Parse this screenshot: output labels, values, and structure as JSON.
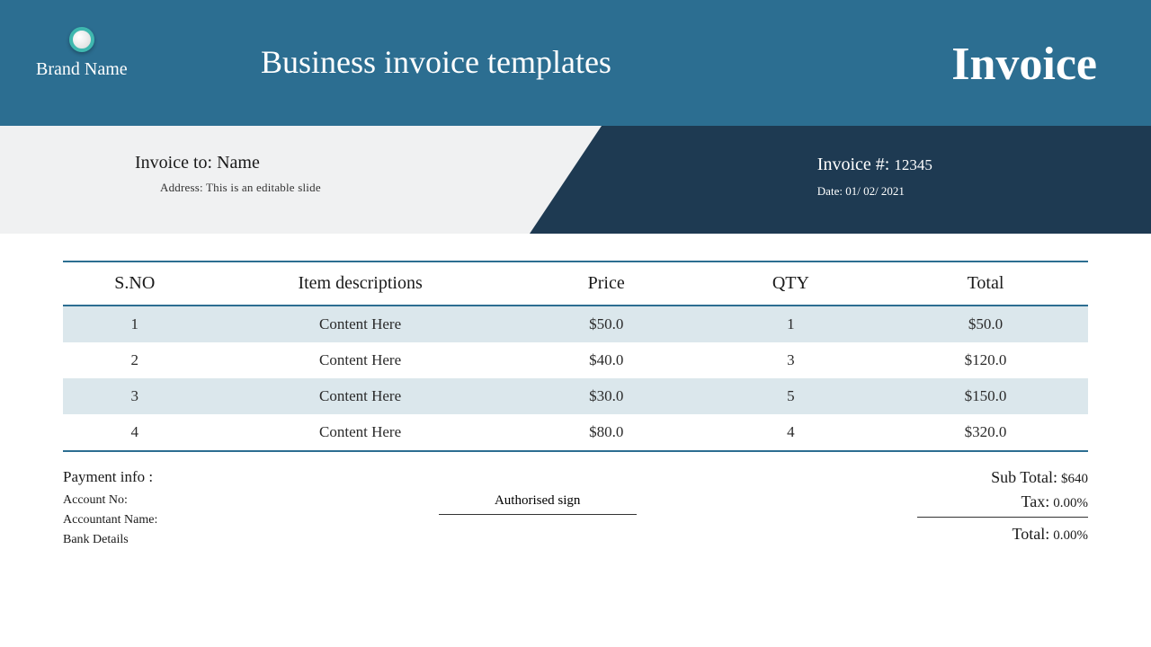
{
  "colors": {
    "header_bg": "#2c6e91",
    "subheader_left_bg": "#f0f1f2",
    "subheader_right_bg": "#1e3a52",
    "row_alt_bg": "#dbe7ec",
    "border": "#2c6e91",
    "text_dark": "#1a1a1a",
    "text_white": "#ffffff",
    "icon_ring": "#3fb8af"
  },
  "brand": {
    "name": "Brand Name"
  },
  "title": "Business invoice templates",
  "badge": "Invoice",
  "bill_to": {
    "label": "Invoice to: Name",
    "address": "Address: This is an editable slide"
  },
  "meta": {
    "number_label": "Invoice #:",
    "number": "12345",
    "date_label": "Date:",
    "date": "01/ 02/ 2021"
  },
  "table": {
    "columns": [
      "S.NO",
      "Item descriptions",
      "Price",
      "QTY",
      "Total"
    ],
    "col_widths_pct": [
      14,
      30,
      18,
      18,
      20
    ],
    "rows": [
      {
        "sno": "1",
        "desc": "Content Here",
        "price": "$50.0",
        "qty": "1",
        "total": "$50.0",
        "alt": true
      },
      {
        "sno": "2",
        "desc": "Content Here",
        "price": "$40.0",
        "qty": "3",
        "total": "$120.0",
        "alt": false
      },
      {
        "sno": "3",
        "desc": "Content Here",
        "price": "$30.0",
        "qty": "5",
        "total": "$150.0",
        "alt": true
      },
      {
        "sno": "4",
        "desc": "Content Here",
        "price": "$80.0",
        "qty": "4",
        "total": "$320.0",
        "alt": false
      }
    ]
  },
  "payment": {
    "title": "Payment info :",
    "lines": [
      "Account No:",
      "Accountant Name:",
      "Bank Details"
    ]
  },
  "signature": {
    "label": "Authorised sign"
  },
  "totals": {
    "subtotal_label": "Sub Total:",
    "subtotal": "$640",
    "tax_label": "Tax:",
    "tax": "0.00%",
    "total_label": "Total:",
    "total": "0.00%"
  }
}
